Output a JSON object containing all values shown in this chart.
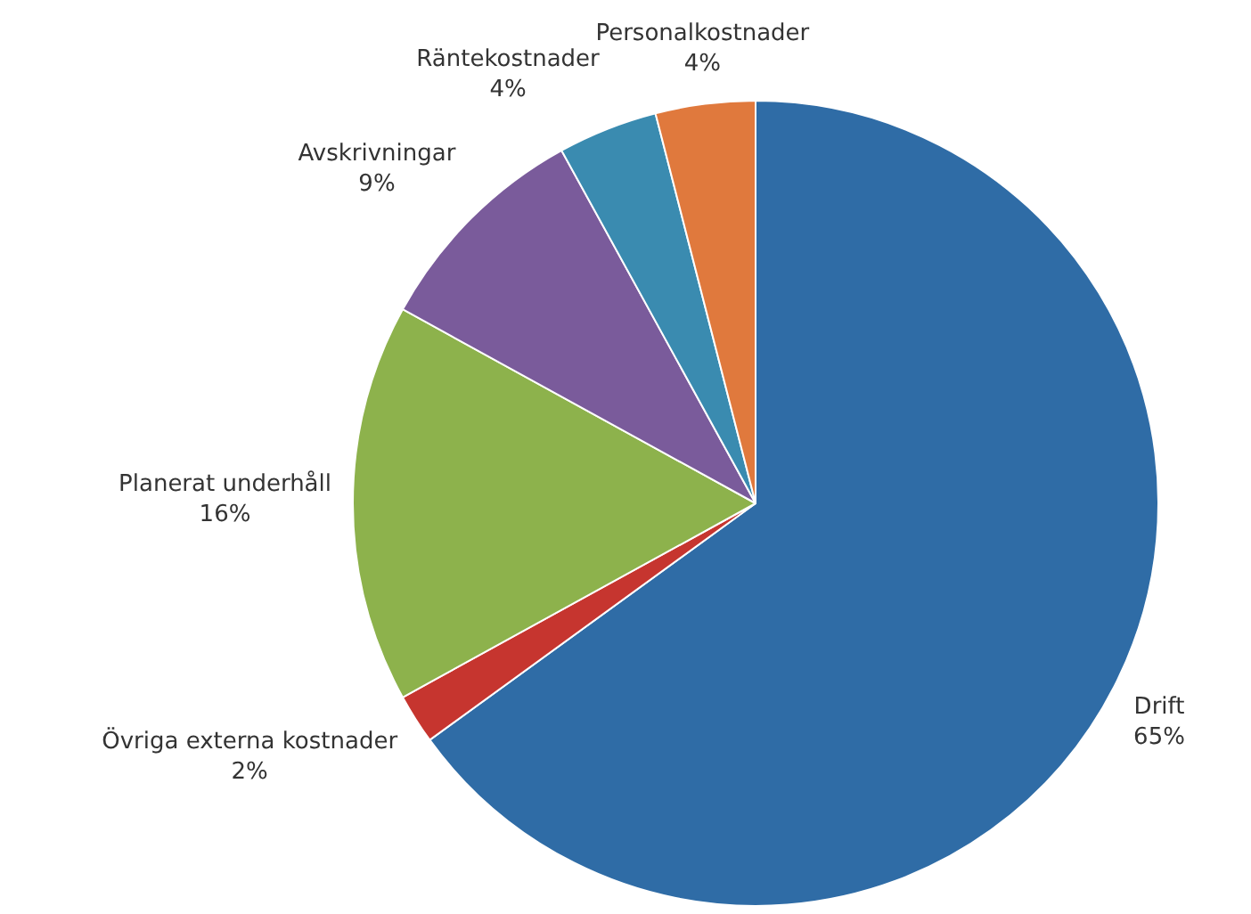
{
  "chart_data": {
    "type": "pie",
    "categories": [
      "Drift",
      "Övriga externa kostnader",
      "Planerat underhåll",
      "Avskrivningar",
      "Räntekostnader",
      "Personalkostnader"
    ],
    "values": [
      65,
      2,
      16,
      9,
      4,
      4
    ],
    "value_labels": [
      "65%",
      "2%",
      "16%",
      "9%",
      "4%",
      "4%"
    ],
    "colors": [
      "#2f6ca6",
      "#c6352f",
      "#8db24c",
      "#7a5b9b",
      "#3a8bb0",
      "#e0793d"
    ],
    "legend": false
  }
}
